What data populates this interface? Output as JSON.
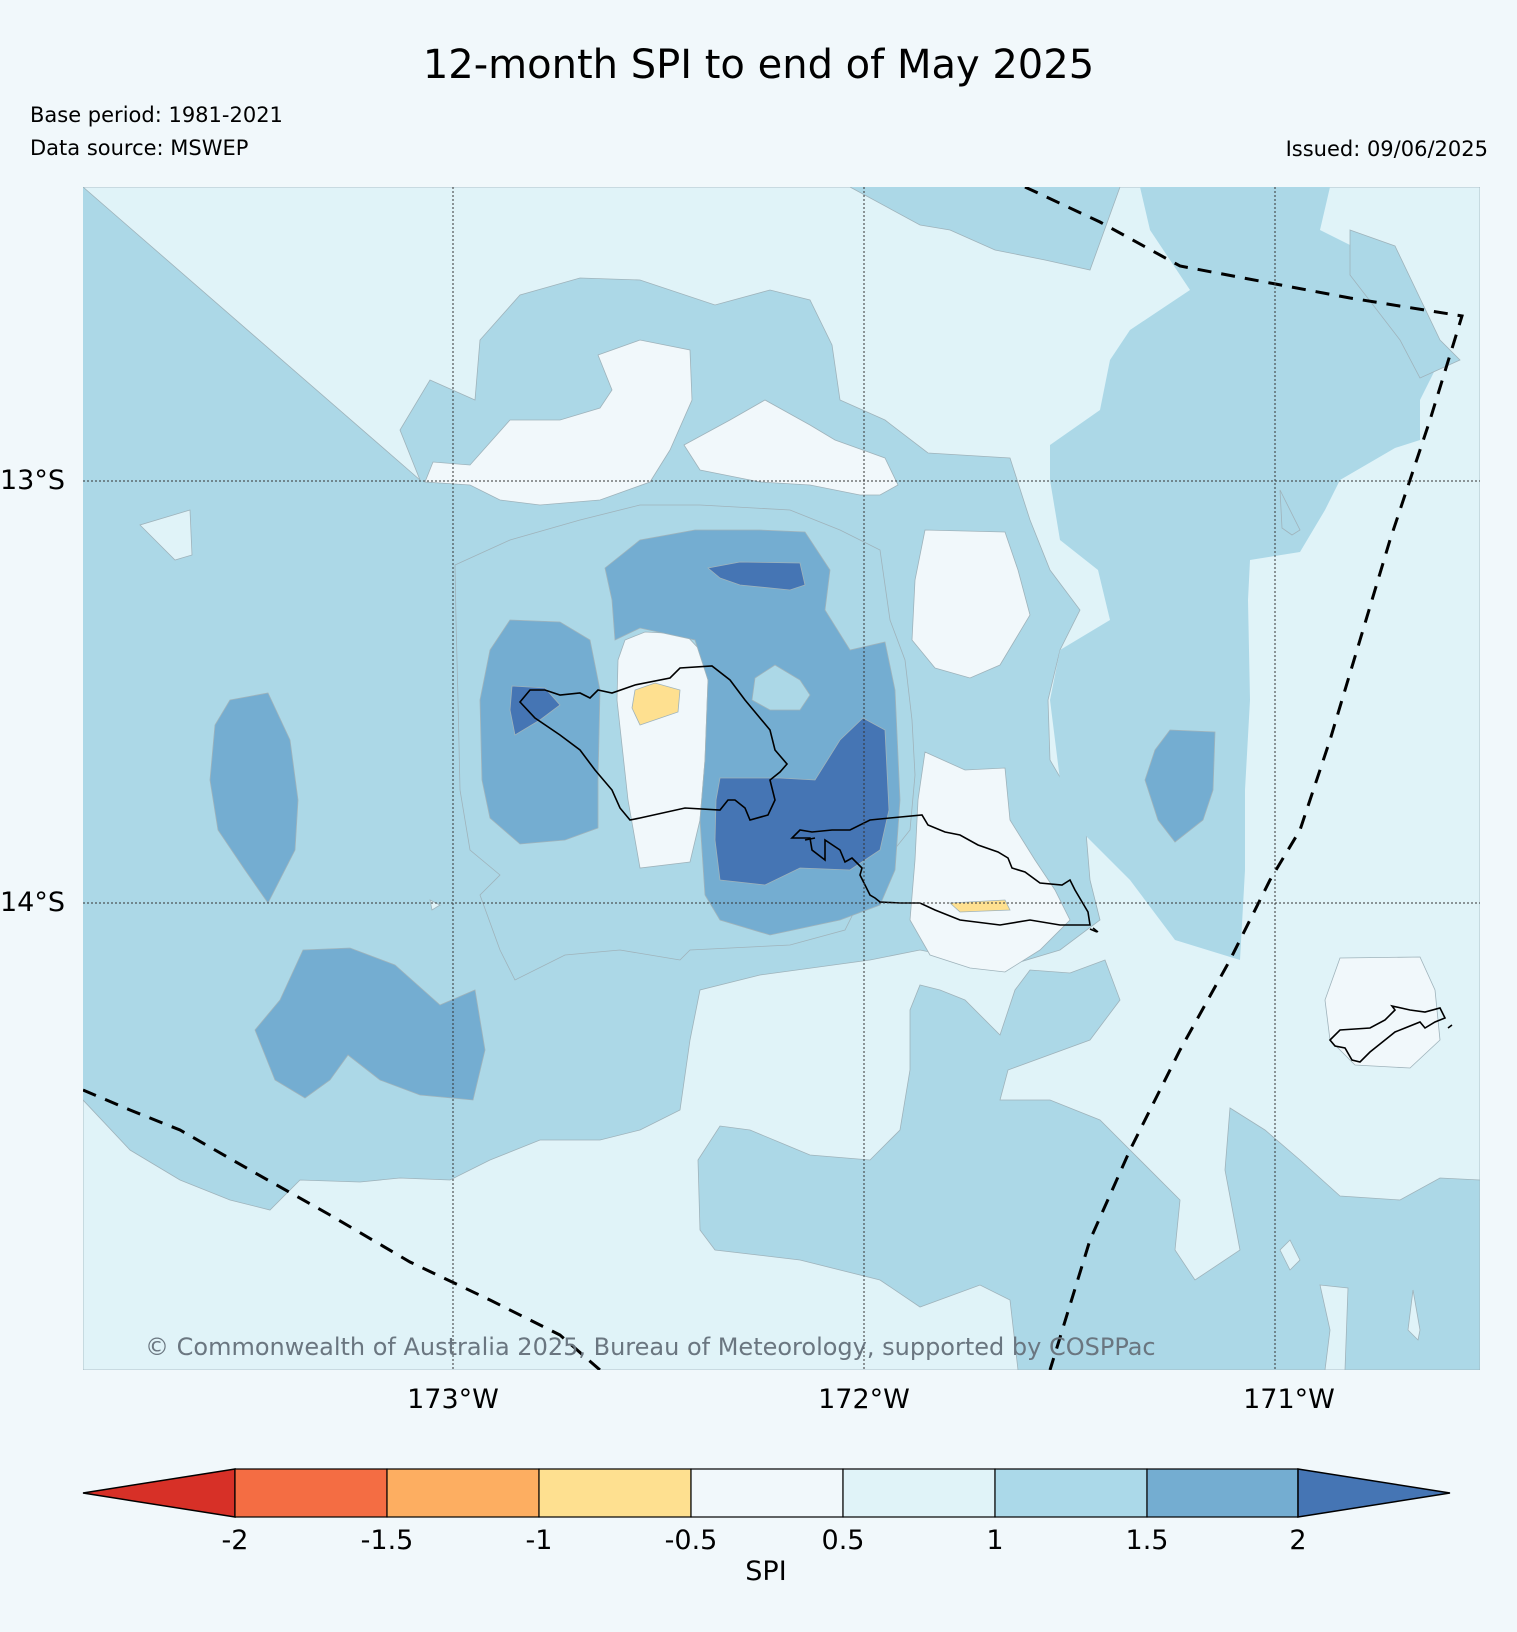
{
  "title": "12-month SPI to end of May 2025",
  "base_period": "Base period: 1981-2021",
  "data_source": "Data source: MSWEP",
  "issued": "Issued: 09/06/2025",
  "copyright": "© Commonwealth of Australia 2025, Bureau of Meteorology, supported by COSPPac",
  "map": {
    "lat_labels": [
      "13°S",
      "14°S"
    ],
    "lon_labels": [
      "173°W",
      "172°W",
      "171°W"
    ],
    "background_category_color": "#acd8e7",
    "features": [
      "SPI contour fill",
      "Samoa coastline (Savai'i, Upolu)",
      "American Samoa coastline (Tutuila)",
      "EEZ boundary dashed lines"
    ]
  },
  "colorbar": {
    "label": "SPI",
    "ticks": [
      "-2",
      "-1.5",
      "-1",
      "-0.5",
      "0.5",
      "1",
      "1.5",
      "2"
    ],
    "bins": [
      {
        "range": "< -2",
        "color": "#d73027"
      },
      {
        "range": "-2 to -1.5",
        "color": "#f46d43"
      },
      {
        "range": "-1.5 to -1",
        "color": "#fdae61"
      },
      {
        "range": "-1 to -0.5",
        "color": "#fee090"
      },
      {
        "range": "-0.5 to 0.5",
        "color": "#f1f8fb"
      },
      {
        "range": "0.5 to 1",
        "color": "#e0f3f8"
      },
      {
        "range": "1 to 1.5",
        "color": "#abd9e9"
      },
      {
        "range": "1.5 to 2",
        "color": "#74add1"
      },
      {
        "range": "> 2",
        "color": "#4575b4"
      }
    ]
  }
}
